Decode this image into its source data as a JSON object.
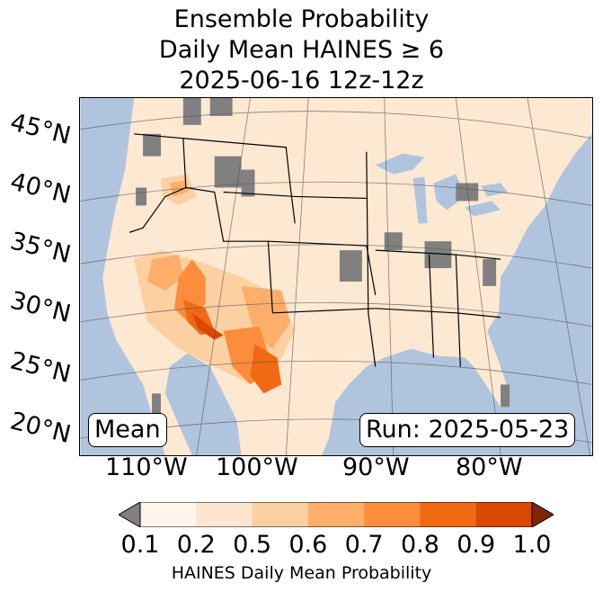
{
  "title": {
    "line1": "Ensemble Probability",
    "line2": "Daily Mean HAINES ≥ 6",
    "line3": "2025-06-16 12z-12z"
  },
  "lat_labels": [
    "45°N",
    "40°N",
    "35°N",
    "30°N",
    "25°N",
    "20°N"
  ],
  "lon_labels": [
    "110°W",
    "100°W",
    "90°W",
    "80°W"
  ],
  "badges": {
    "left": "Mean",
    "right": "Run: 2025-05-23"
  },
  "colorbar": {
    "label": "HAINES Daily Mean Probability",
    "ticks": [
      "0.1",
      "0.2",
      "0.5",
      "0.6",
      "0.7",
      "0.8",
      "0.9",
      "1.0"
    ],
    "under_color": "#808080",
    "over_color": "#7f2704",
    "colors": [
      "#fff5eb",
      "#fee6ce",
      "#fdd0a2",
      "#fdae6b",
      "#fd8d3c",
      "#f16913",
      "#d94801"
    ]
  },
  "colors": {
    "ocean": "#b0c4de",
    "land": "#fde8d2",
    "missing": "#808080"
  }
}
